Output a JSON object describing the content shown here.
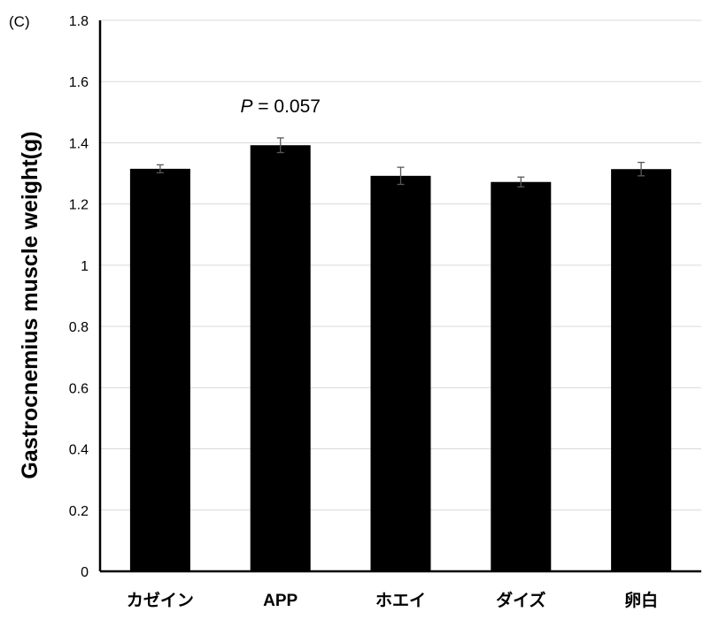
{
  "panel_label": "(C)",
  "chart_data": {
    "type": "bar",
    "categories": [
      "カゼイン",
      "APP",
      "ホエイ",
      "ダイズ",
      "卵白"
    ],
    "values": [
      1.315,
      1.392,
      1.292,
      1.272,
      1.314
    ],
    "errors": [
      0.013,
      0.024,
      0.028,
      0.016,
      0.022
    ],
    "ylabel": "Gastrocnemius muscle weight(g)",
    "xlabel": "",
    "ylim": [
      0,
      1.8
    ],
    "yticks": [
      0,
      0.2,
      0.4,
      0.6,
      0.8,
      1,
      1.2,
      1.4,
      1.6,
      1.8
    ],
    "ytick_labels": [
      "0",
      "0.2",
      "0.4",
      "0.6",
      "0.8",
      "1",
      "1.2",
      "1.4",
      "1.6",
      "1.8"
    ],
    "grid": true,
    "bar_color": "#000000",
    "grid_color": "#d9d9d9",
    "error_bar_color": "#595959",
    "annotations": [
      {
        "category": "APP",
        "italic": "P",
        "text": " = 0.057"
      }
    ]
  }
}
